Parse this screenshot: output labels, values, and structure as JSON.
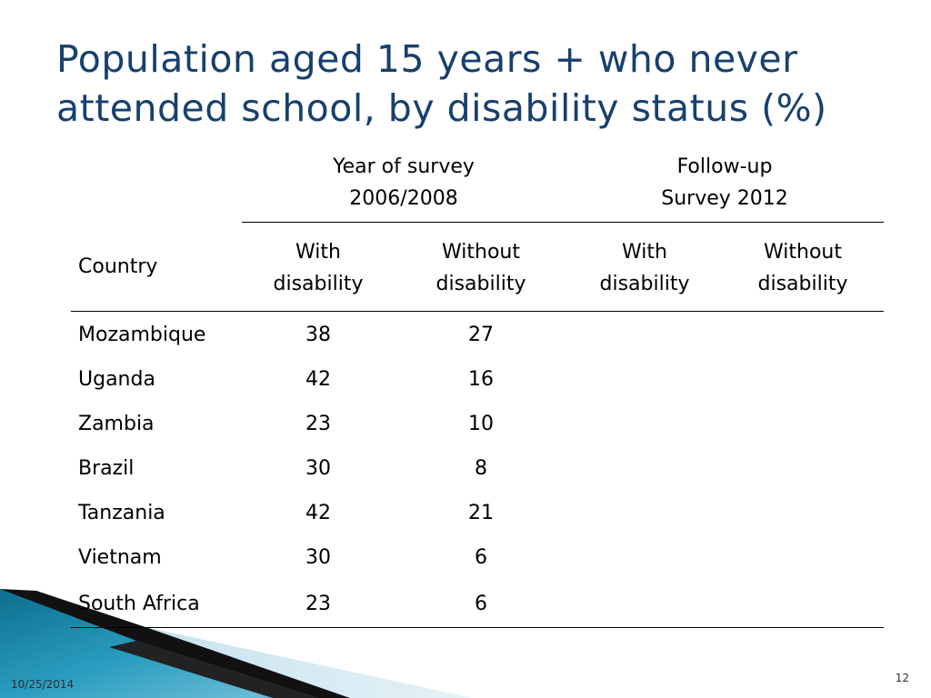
{
  "slide": {
    "title": "Population aged 15 years + who never attended school, by disability status (%)",
    "date": "10/25/2014",
    "page_number": "12"
  },
  "table": {
    "group_headers": [
      {
        "line1": "Year of survey",
        "line2": "2006/2008"
      },
      {
        "line1": "Follow-up",
        "line2": "Survey 2012"
      }
    ],
    "country_header": "Country",
    "sub_headers": [
      {
        "line1": "With",
        "line2": "disability"
      },
      {
        "line1": "Without",
        "line2": "disability"
      },
      {
        "line1": "With",
        "line2": "disability"
      },
      {
        "line1": "Without",
        "line2": "disability"
      }
    ],
    "rows": [
      {
        "country": "Mozambique",
        "with": "38",
        "without": "27",
        "fu_with": "",
        "fu_without": ""
      },
      {
        "country": "Uganda",
        "with": "42",
        "without": "16",
        "fu_with": "",
        "fu_without": ""
      },
      {
        "country": "Zambia",
        "with": "23",
        "without": "10",
        "fu_with": "",
        "fu_without": ""
      },
      {
        "country": "Brazil",
        "with": "30",
        "without": "8",
        "fu_with": "",
        "fu_without": ""
      },
      {
        "country": "Tanzania",
        "with": "42",
        "without": "21",
        "fu_with": "",
        "fu_without": ""
      },
      {
        "country": "Vietnam",
        "with": "30",
        "without": "6",
        "fu_with": "",
        "fu_without": ""
      },
      {
        "country": "South Africa",
        "with": "23",
        "without": "6",
        "fu_with": "",
        "fu_without": ""
      }
    ]
  },
  "colors": {
    "title": "#17406d",
    "accent_teal": "#1f8fb0",
    "accent_light": "#d8ebf3"
  }
}
